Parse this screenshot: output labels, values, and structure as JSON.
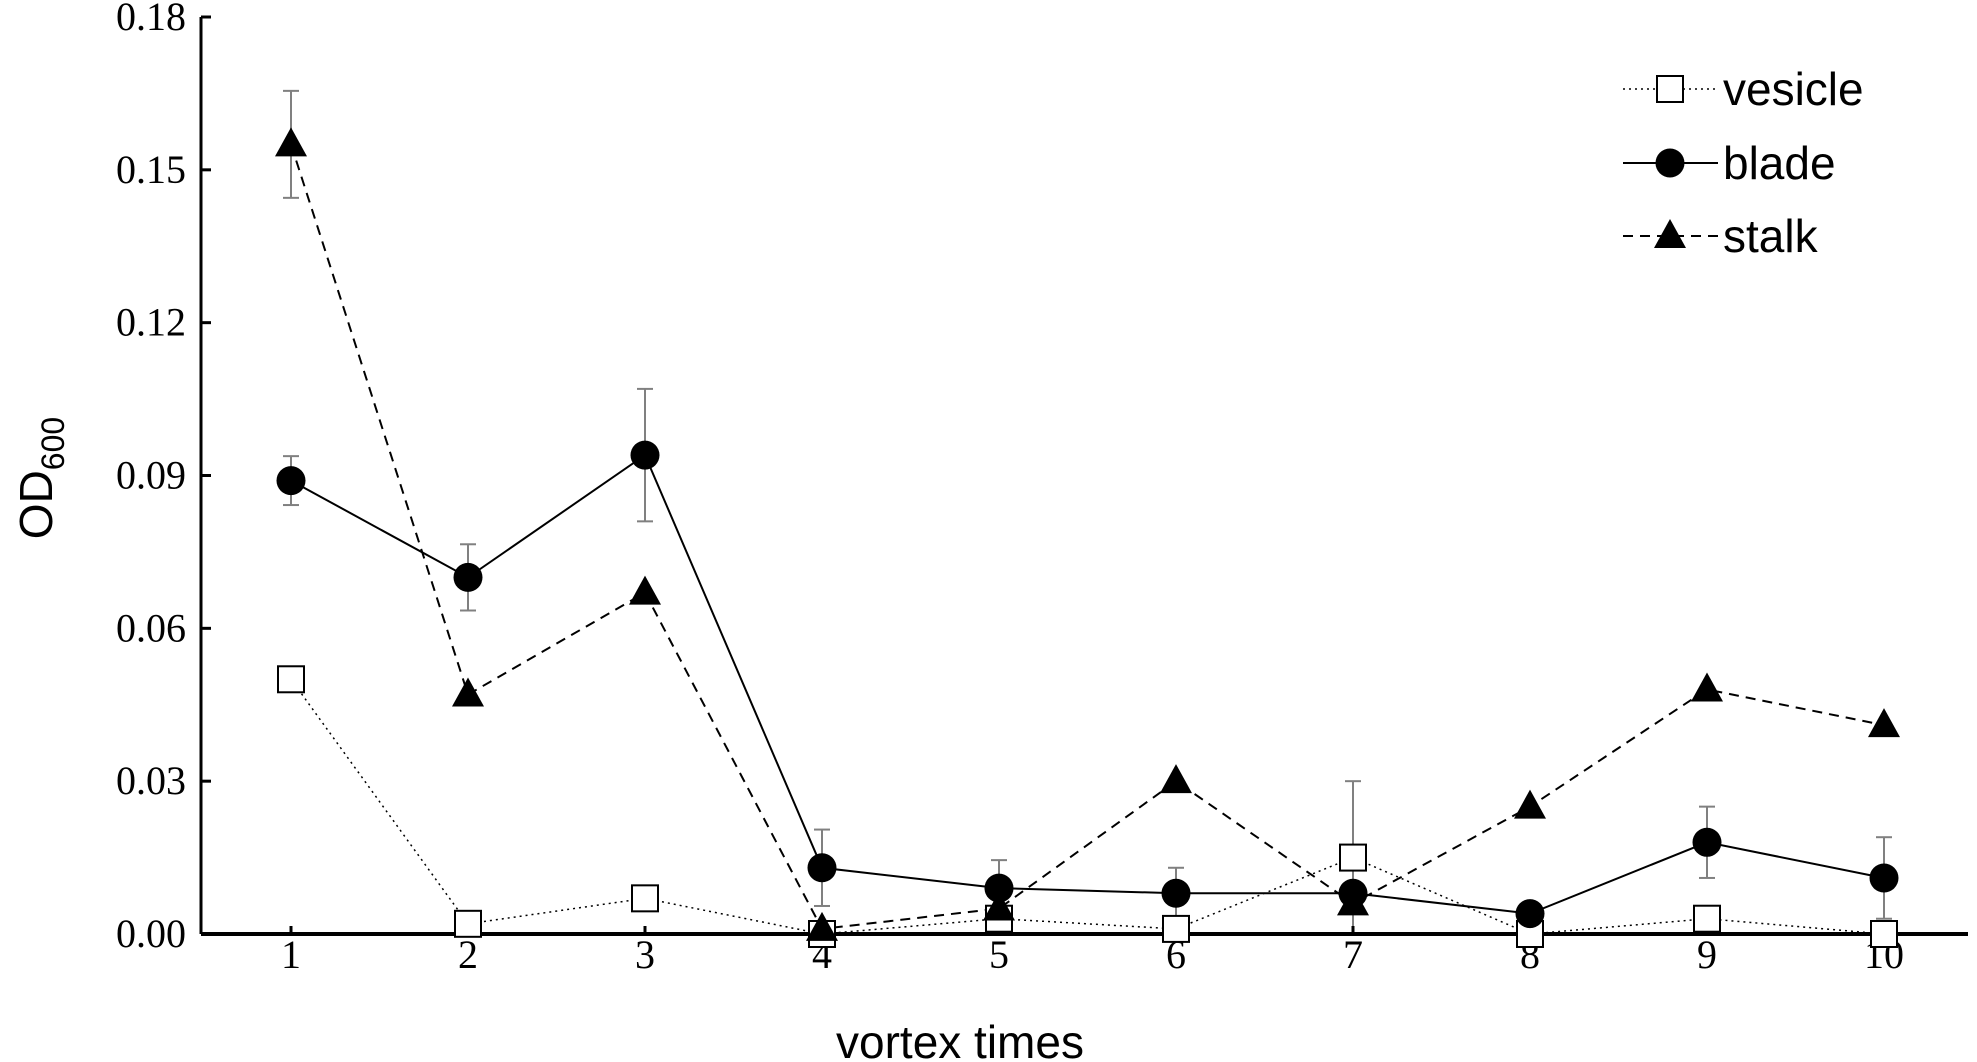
{
  "chart_data": {
    "type": "line",
    "title": "",
    "xlabel": "vortex times",
    "ylabel": {
      "main": "OD",
      "subscript": "600"
    },
    "categories": [
      "1",
      "2",
      "3",
      "4",
      "5",
      "6",
      "7",
      "8",
      "9",
      "10"
    ],
    "x": [
      1,
      2,
      3,
      4,
      5,
      6,
      7,
      8,
      9,
      10
    ],
    "ylim": [
      0,
      0.18
    ],
    "yticks": [
      "0.00",
      "0.03",
      "0.06",
      "0.09",
      "0.12",
      "0.15",
      "0.18"
    ],
    "ytick_values": [
      0,
      0.03,
      0.06,
      0.09,
      0.12,
      0.15,
      0.18
    ],
    "grid": false,
    "legend": "top-right",
    "series": [
      {
        "name": "vesicle",
        "marker": "open-square",
        "line_style": "dotted",
        "values": [
          0.05,
          0.002,
          0.007,
          0.0,
          0.003,
          0.001,
          0.015,
          0.0,
          0.003,
          0.0
        ],
        "error": [
          0,
          0,
          0,
          0,
          0,
          0,
          0.015,
          0,
          0,
          0
        ]
      },
      {
        "name": "blade",
        "marker": "filled-circle",
        "line_style": "solid",
        "values": [
          0.089,
          0.07,
          0.094,
          0.013,
          0.009,
          0.008,
          0.008,
          0.004,
          0.018,
          0.011
        ],
        "error": [
          0.0048,
          0.0065,
          0.013,
          0.0075,
          0.0055,
          0.005,
          0,
          0,
          0.007,
          0.008
        ]
      },
      {
        "name": "stalk",
        "marker": "filled-triangle",
        "line_style": "dashed",
        "values": [
          0.155,
          0.047,
          0.067,
          0.001,
          0.005,
          0.03,
          0.006,
          0.025,
          0.048,
          0.041
        ],
        "error": [
          0.0105,
          0,
          0,
          0,
          0,
          0,
          0,
          0,
          0,
          0
        ]
      }
    ]
  }
}
